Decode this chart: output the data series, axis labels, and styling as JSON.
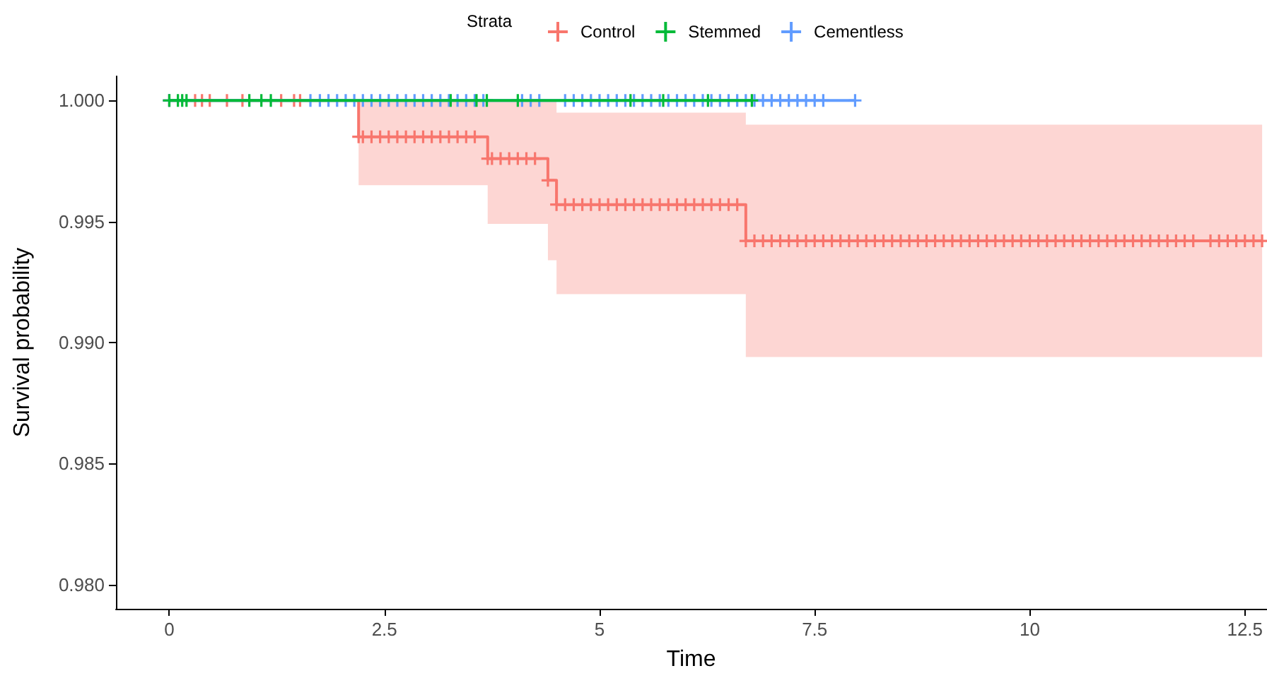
{
  "chart_data": {
    "type": "step",
    "xlabel": "Time",
    "ylabel": "Survival probability",
    "legend_title": "Strata",
    "legend": "top",
    "marker": "cross",
    "xlim": [
      -0.62,
      12.75
    ],
    "xticks": [
      0,
      2.5,
      5,
      7.5,
      10,
      12.5
    ],
    "ylim": [
      0.979,
      1.001
    ],
    "yticks": [
      {
        "value": 0.98,
        "label": "0.980"
      },
      {
        "value": 0.985,
        "label": "0.985"
      },
      {
        "value": 0.99,
        "label": "0.990"
      },
      {
        "value": 0.995,
        "label": "0.995"
      },
      {
        "value": 1,
        "label": "1.000"
      }
    ],
    "series": [
      {
        "name": "Control",
        "color": "#f8766d",
        "x": [
          0,
          0.3,
          0.38,
          0.47,
          0.67,
          0.85,
          1.3,
          1.45,
          1.52,
          2.2,
          2.25,
          2.35,
          2.45,
          2.55,
          2.65,
          2.75,
          2.85,
          2.95,
          3.05,
          3.15,
          3.25,
          3.35,
          3.45,
          3.55,
          3.7,
          3.75,
          3.85,
          3.95,
          4.05,
          4.15,
          4.25,
          4.4,
          4.5,
          4.6,
          4.7,
          4.8,
          4.9,
          5.0,
          5.1,
          5.2,
          5.3,
          5.4,
          5.5,
          5.6,
          5.7,
          5.8,
          5.9,
          6.0,
          6.1,
          6.2,
          6.3,
          6.4,
          6.5,
          6.6,
          6.7,
          6.8,
          6.9,
          7.0,
          7.1,
          7.2,
          7.3,
          7.4,
          7.5,
          7.6,
          7.7,
          7.8,
          7.9,
          8.0,
          8.1,
          8.2,
          8.3,
          8.4,
          8.5,
          8.6,
          8.7,
          8.8,
          8.9,
          9.0,
          9.1,
          9.2,
          9.3,
          9.4,
          9.5,
          9.6,
          9.7,
          9.8,
          9.9,
          10.0,
          10.1,
          10.2,
          10.3,
          10.4,
          10.5,
          10.6,
          10.7,
          10.8,
          10.9,
          11.0,
          11.1,
          11.2,
          11.3,
          11.4,
          11.5,
          11.6,
          11.7,
          11.8,
          11.9,
          12.1,
          12.2,
          12.3,
          12.4,
          12.5,
          12.6,
          12.7
        ],
        "values": [
          1,
          1,
          1,
          1,
          1,
          1,
          1,
          1,
          1,
          0.9985,
          0.9985,
          0.9985,
          0.9985,
          0.9985,
          0.9985,
          0.9985,
          0.9985,
          0.9985,
          0.9985,
          0.9985,
          0.9985,
          0.9985,
          0.9985,
          0.9985,
          0.9976,
          0.9976,
          0.9976,
          0.9976,
          0.9976,
          0.9976,
          0.9976,
          0.9967,
          0.9957,
          0.9957,
          0.9957,
          0.9957,
          0.9957,
          0.9957,
          0.9957,
          0.9957,
          0.9957,
          0.9957,
          0.9957,
          0.9957,
          0.9957,
          0.9957,
          0.9957,
          0.9957,
          0.9957,
          0.9957,
          0.9957,
          0.9957,
          0.9957,
          0.9957,
          0.9942,
          0.9942,
          0.9942,
          0.9942,
          0.9942,
          0.9942,
          0.9942,
          0.9942,
          0.9942,
          0.9942,
          0.9942,
          0.9942,
          0.9942,
          0.9942,
          0.9942,
          0.9942,
          0.9942,
          0.9942,
          0.9942,
          0.9942,
          0.9942,
          0.9942,
          0.9942,
          0.9942,
          0.9942,
          0.9942,
          0.9942,
          0.9942,
          0.9942,
          0.9942,
          0.9942,
          0.9942,
          0.9942,
          0.9942,
          0.9942,
          0.9942,
          0.9942,
          0.9942,
          0.9942,
          0.9942,
          0.9942,
          0.9942,
          0.9942,
          0.9942,
          0.9942,
          0.9942,
          0.9942,
          0.9942,
          0.9942,
          0.9942,
          0.9942,
          0.9942,
          0.9942,
          0.9942,
          0.9942,
          0.9942,
          0.9942,
          0.9942,
          0.9942,
          0.9942
        ],
        "lower": [
          null,
          null,
          null,
          null,
          null,
          null,
          null,
          null,
          null,
          0.9965,
          0.9965,
          0.9965,
          0.9965,
          0.9965,
          0.9965,
          0.9965,
          0.9965,
          0.9965,
          0.9965,
          0.9965,
          0.9965,
          0.9965,
          0.9965,
          0.9965,
          0.9949,
          0.9949,
          0.9949,
          0.9949,
          0.9949,
          0.9949,
          0.9949,
          0.9934,
          0.992,
          0.992,
          0.992,
          0.992,
          0.992,
          0.992,
          0.992,
          0.992,
          0.992,
          0.992,
          0.992,
          0.992,
          0.992,
          0.992,
          0.992,
          0.992,
          0.992,
          0.992,
          0.992,
          0.992,
          0.992,
          0.992,
          0.9894,
          0.9894,
          0.9894,
          0.9894,
          0.9894,
          0.9894,
          0.9894,
          0.9894,
          0.9894,
          0.9894,
          0.9894,
          0.9894,
          0.9894,
          0.9894,
          0.9894,
          0.9894,
          0.9894,
          0.9894,
          0.9894,
          0.9894,
          0.9894,
          0.9894,
          0.9894,
          0.9894,
          0.9894,
          0.9894,
          0.9894,
          0.9894,
          0.9894,
          0.9894,
          0.9894,
          0.9894,
          0.9894,
          0.9894,
          0.9894,
          0.9894,
          0.9894,
          0.9894,
          0.9894,
          0.9894,
          0.9894,
          0.9894,
          0.9894,
          0.9894,
          0.9894,
          0.9894,
          0.9894,
          0.9894,
          0.9894,
          0.9894,
          0.9894,
          0.9894,
          0.9894,
          0.9894,
          0.9894,
          0.9894,
          0.9894,
          0.9894,
          0.9894,
          0.9894
        ],
        "upper": [
          null,
          null,
          null,
          null,
          null,
          null,
          null,
          null,
          null,
          1,
          1,
          1,
          1,
          1,
          1,
          1,
          1,
          1,
          1,
          1,
          1,
          1,
          1,
          1,
          1,
          1,
          1,
          1,
          1,
          1,
          1,
          1,
          0.9995,
          0.9995,
          0.9995,
          0.9995,
          0.9995,
          0.9995,
          0.9995,
          0.9995,
          0.9995,
          0.9995,
          0.9995,
          0.9995,
          0.9995,
          0.9995,
          0.9995,
          0.9995,
          0.9995,
          0.9995,
          0.9995,
          0.9995,
          0.9995,
          0.9995,
          0.999,
          0.999,
          0.999,
          0.999,
          0.999,
          0.999,
          0.999,
          0.999,
          0.999,
          0.999,
          0.999,
          0.999,
          0.999,
          0.999,
          0.999,
          0.999,
          0.999,
          0.999,
          0.999,
          0.999,
          0.999,
          0.999,
          0.999,
          0.999,
          0.999,
          0.999,
          0.999,
          0.999,
          0.999,
          0.999,
          0.999,
          0.999,
          0.999,
          0.999,
          0.999,
          0.999,
          0.999,
          0.999,
          0.999,
          0.999,
          0.999,
          0.999,
          0.999,
          0.999,
          0.999,
          0.999,
          0.999,
          0.999,
          0.999,
          0.999,
          0.999,
          0.999,
          0.999,
          0.999,
          0.999,
          0.999,
          0.999,
          0.999,
          0.999,
          0.999
        ]
      },
      {
        "name": "Stemmed",
        "color": "#00ba38",
        "x": [
          0,
          0.1,
          0.15,
          0.2,
          0.93,
          1.07,
          1.18,
          3.27,
          3.57,
          3.69,
          4.05,
          5.36,
          5.74,
          6.26,
          6.77
        ],
        "values": [
          1,
          1,
          1,
          1,
          1,
          1,
          1,
          1,
          1,
          1,
          1,
          1,
          1,
          1,
          1
        ]
      },
      {
        "name": "Cementless",
        "color": "#619cff",
        "x": [
          0,
          1.64,
          1.75,
          1.85,
          1.95,
          2.05,
          2.15,
          2.25,
          2.35,
          2.45,
          2.55,
          2.65,
          2.75,
          2.85,
          2.95,
          3.05,
          3.15,
          3.25,
          3.35,
          3.45,
          3.55,
          3.65,
          4.1,
          4.2,
          4.3,
          4.6,
          4.7,
          4.8,
          4.9,
          5.0,
          5.1,
          5.2,
          5.3,
          5.4,
          5.5,
          5.6,
          5.7,
          5.8,
          5.9,
          6.0,
          6.1,
          6.2,
          6.3,
          6.4,
          6.5,
          6.6,
          6.7,
          6.8,
          6.9,
          7.0,
          7.1,
          7.2,
          7.3,
          7.4,
          7.5,
          7.6,
          7.97
        ],
        "values": [
          1,
          1,
          1,
          1,
          1,
          1,
          1,
          1,
          1,
          1,
          1,
          1,
          1,
          1,
          1,
          1,
          1,
          1,
          1,
          1,
          1,
          1,
          1,
          1,
          1,
          1,
          1,
          1,
          1,
          1,
          1,
          1,
          1,
          1,
          1,
          1,
          1,
          1,
          1,
          1,
          1,
          1,
          1,
          1,
          1,
          1,
          1,
          1,
          1,
          1,
          1,
          1,
          1,
          1,
          1,
          1,
          1
        ]
      }
    ]
  }
}
